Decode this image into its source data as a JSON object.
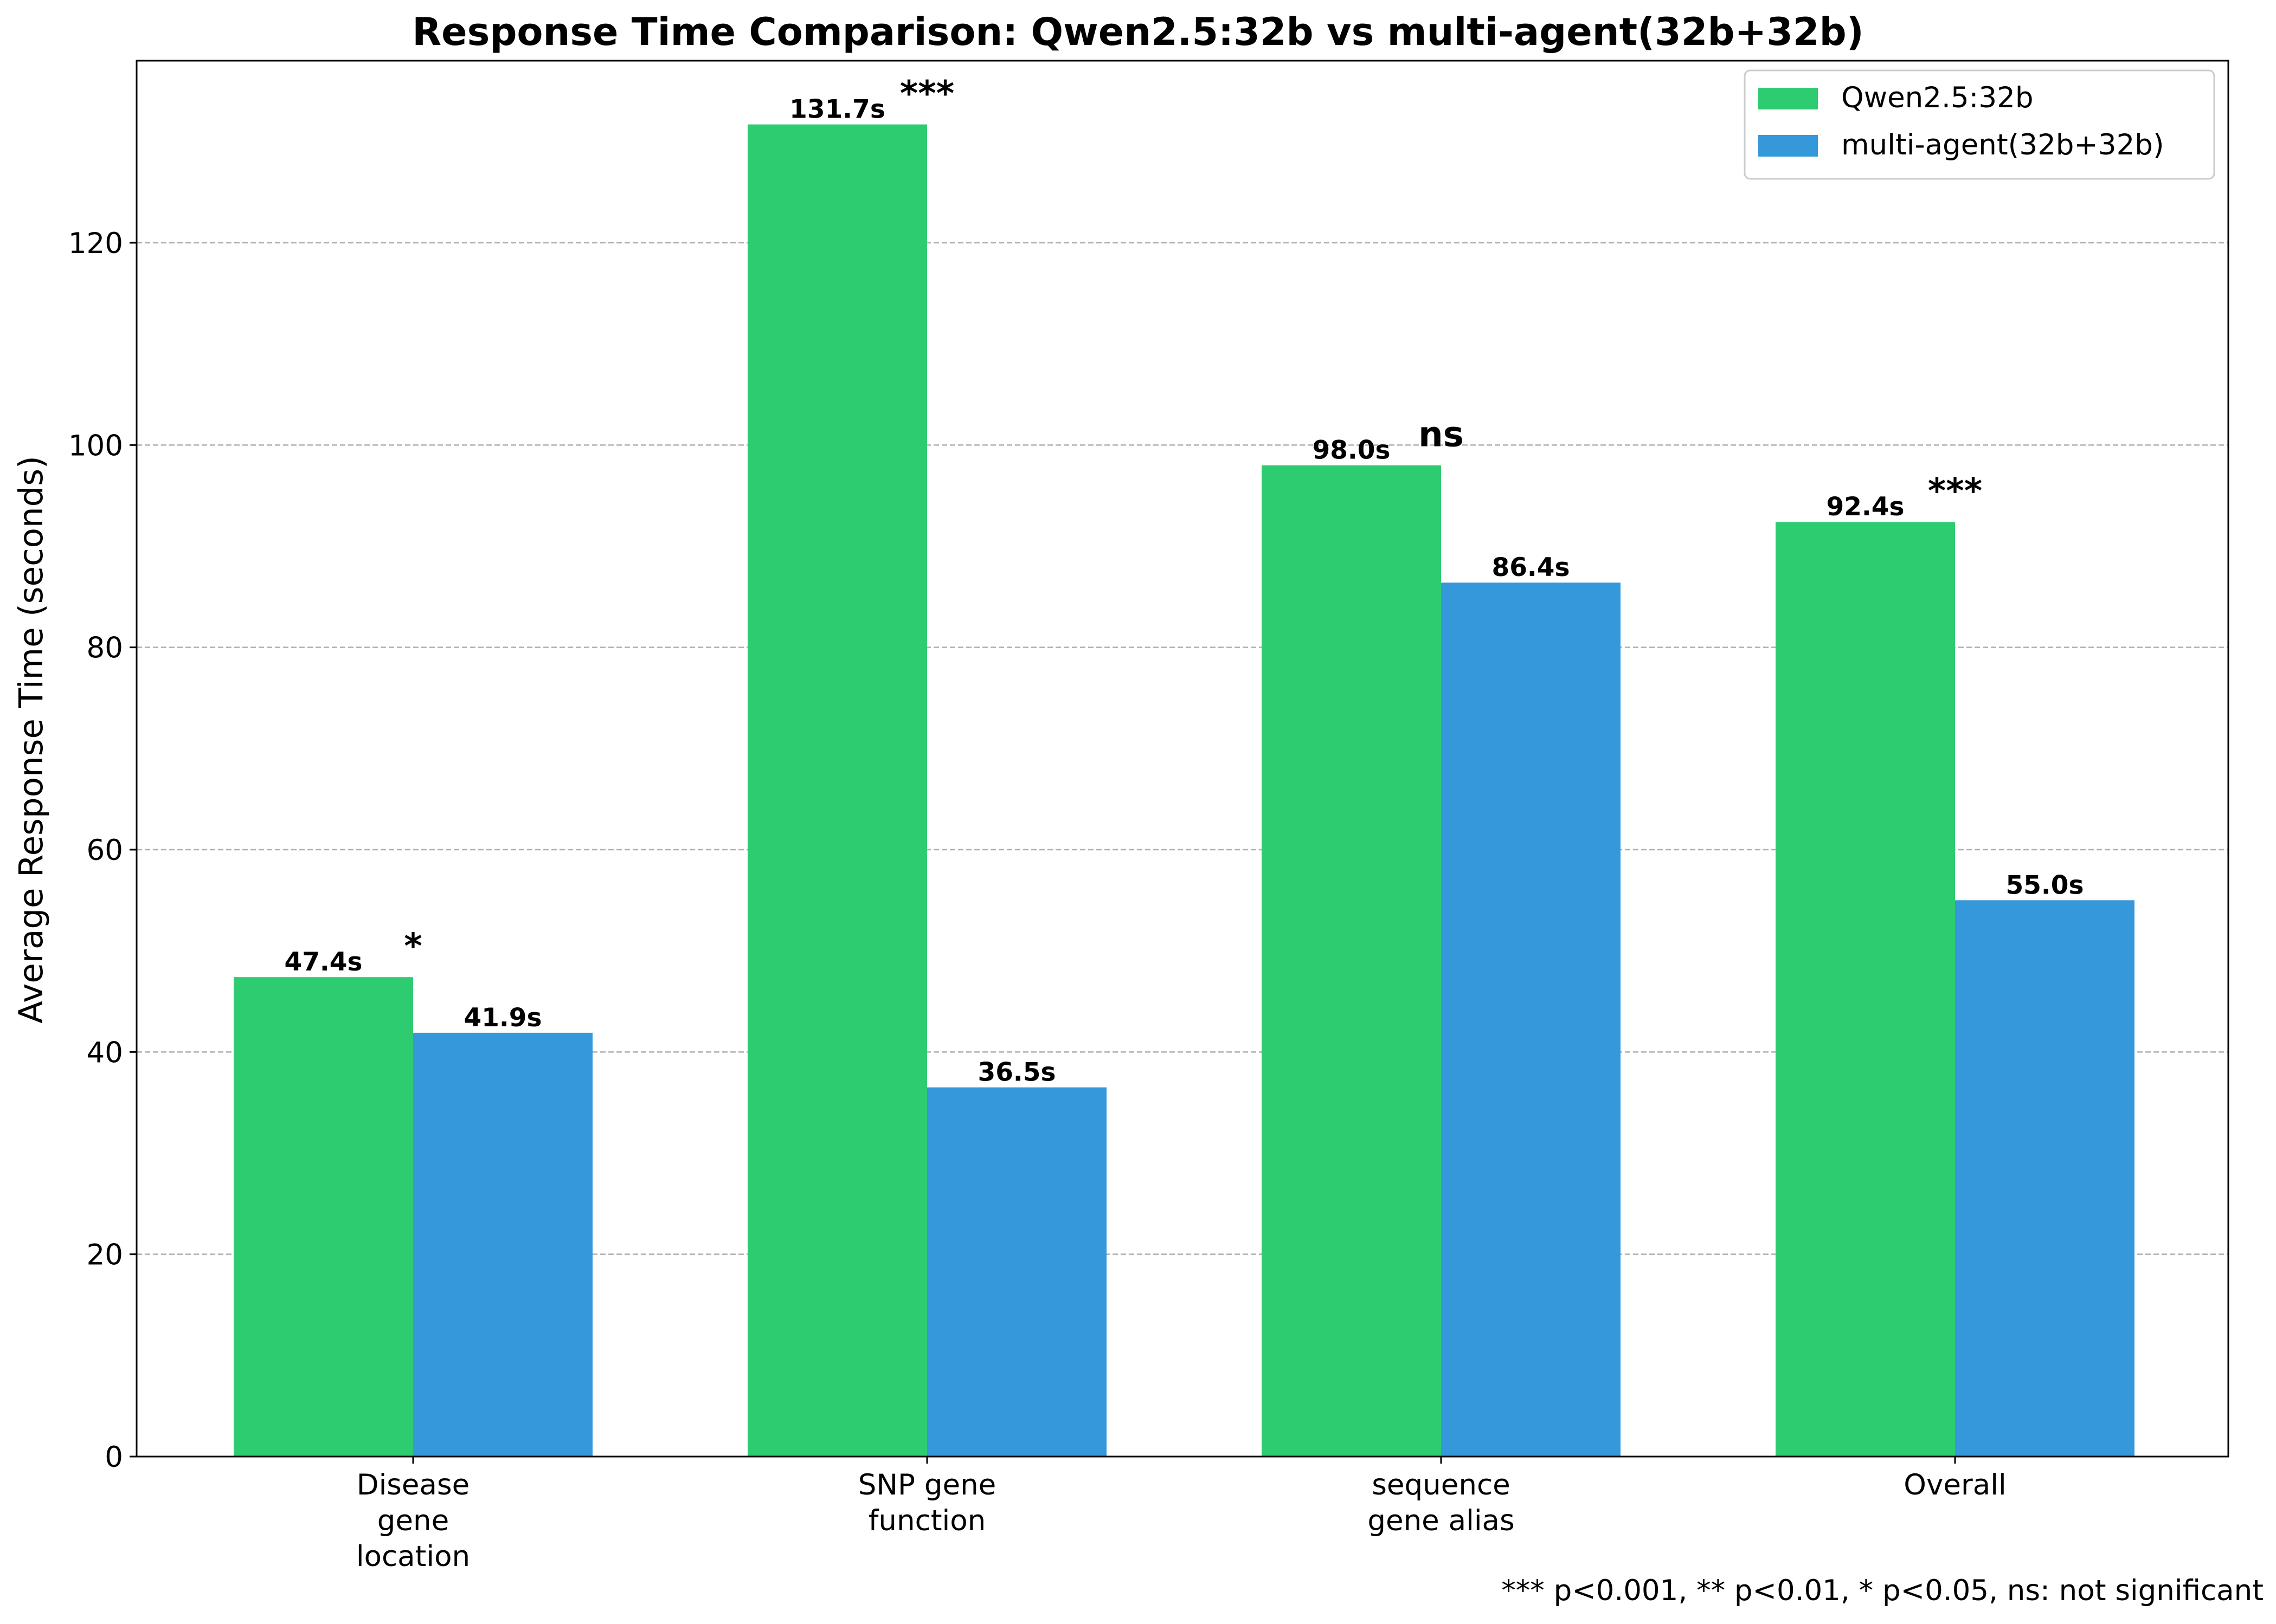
{
  "chart_data": {
    "type": "bar",
    "title": "Response Time Comparison: Qwen2.5:32b vs multi-agent(32b+32b)",
    "ylabel": "Average Response Time (seconds)",
    "xlabel": "",
    "ylim": [
      0,
      138
    ],
    "yticks": [
      0,
      20,
      40,
      60,
      80,
      100,
      120
    ],
    "grid": "y-dashed",
    "legend_position": "top-right",
    "categories": [
      [
        "Disease",
        "gene",
        "location"
      ],
      [
        "SNP gene",
        "function"
      ],
      [
        "sequence",
        "gene alias"
      ],
      [
        "Overall"
      ]
    ],
    "series": [
      {
        "name": "Qwen2.5:32b",
        "color": "#2ecc71",
        "values": [
          47.4,
          131.7,
          98.0,
          92.4
        ],
        "labels": [
          "47.4s",
          "131.7s",
          "98.0s",
          "92.4s"
        ]
      },
      {
        "name": "multi-agent(32b+32b)",
        "color": "#3498db",
        "values": [
          41.9,
          36.5,
          86.4,
          55.0
        ],
        "labels": [
          "41.9s",
          "36.5s",
          "86.4s",
          "55.0s"
        ]
      }
    ],
    "significance": [
      "*",
      "***",
      "ns",
      "***"
    ],
    "footnote": "*** p<0.001, ** p<0.01, * p<0.05, ns: not significant"
  }
}
